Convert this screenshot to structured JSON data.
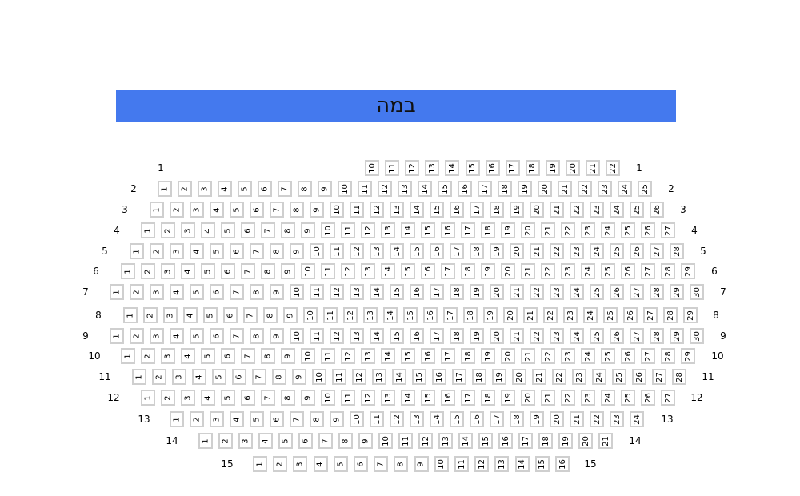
{
  "stage": {
    "label": "במה",
    "color": "#4479ee"
  },
  "seat_border_color": "#cfcfcf",
  "rows": [
    {
      "label": "1",
      "seats_from": 10,
      "seats_to": 22
    },
    {
      "label": "2",
      "seats_from": 1,
      "seats_to": 25
    },
    {
      "label": "3",
      "seats_from": 1,
      "seats_to": 26
    },
    {
      "label": "4",
      "seats_from": 1,
      "seats_to": 27
    },
    {
      "label": "5",
      "seats_from": 1,
      "seats_to": 28
    },
    {
      "label": "6",
      "seats_from": 1,
      "seats_to": 29
    },
    {
      "label": "7",
      "seats_from": 1,
      "seats_to": 30
    },
    {
      "label": "8",
      "seats_from": 1,
      "seats_to": 29
    },
    {
      "label": "9",
      "seats_from": 1,
      "seats_to": 30
    },
    {
      "label": "10",
      "seats_from": 1,
      "seats_to": 29
    },
    {
      "label": "11",
      "seats_from": 1,
      "seats_to": 28
    },
    {
      "label": "12",
      "seats_from": 1,
      "seats_to": 27
    },
    {
      "label": "13",
      "seats_from": 1,
      "seats_to": 24
    },
    {
      "label": "14",
      "seats_from": 1,
      "seats_to": 21
    },
    {
      "label": "15",
      "seats_from": 1,
      "seats_to": 16
    }
  ]
}
